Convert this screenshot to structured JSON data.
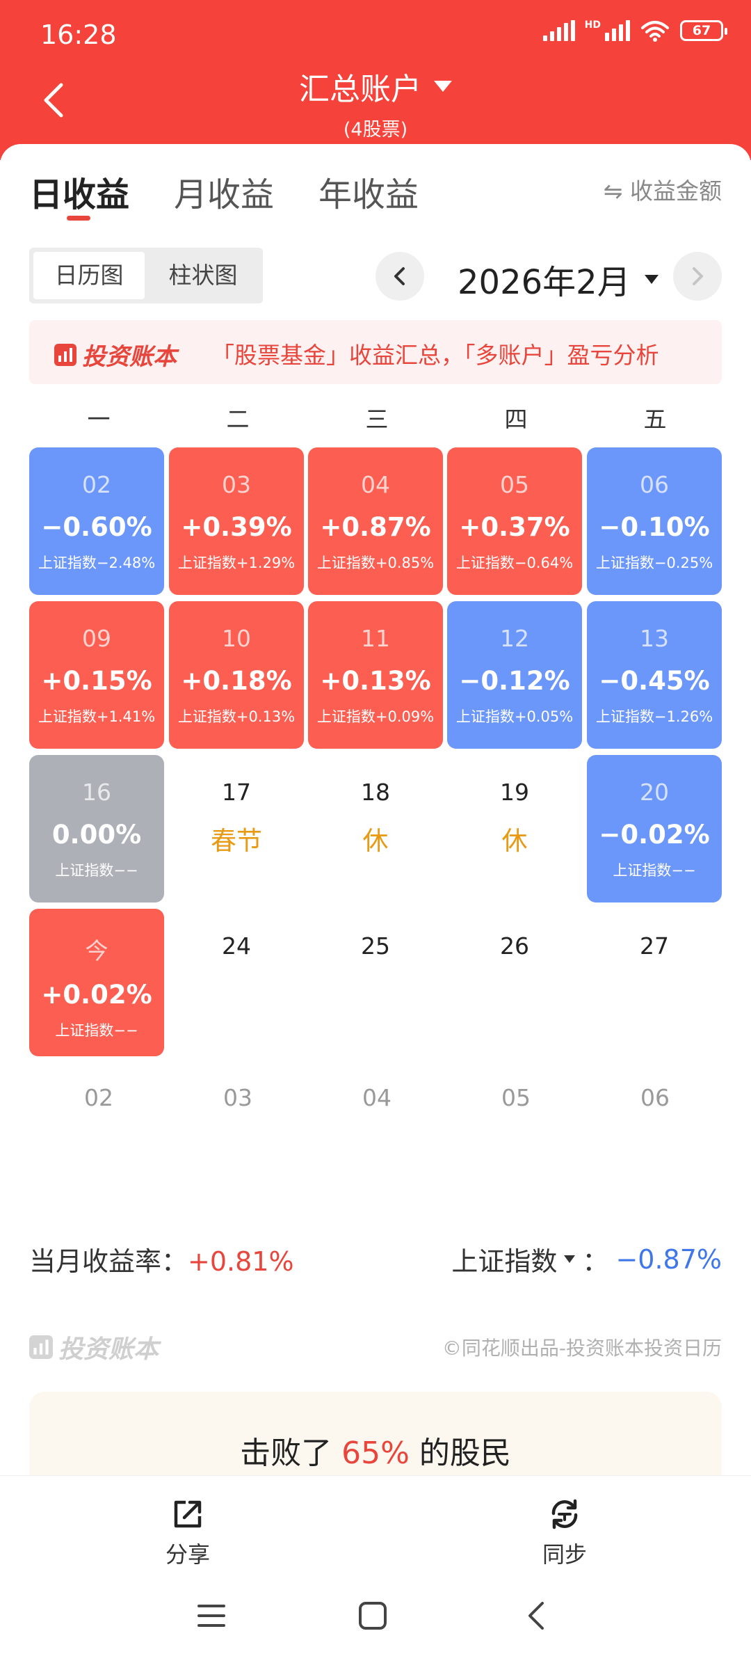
{
  "status": {
    "time": "16:28",
    "battery": "67",
    "hd_label": "HD"
  },
  "header": {
    "title": "汇总账户",
    "subtitle": "(4股票)"
  },
  "tabs": [
    {
      "label": "日收益",
      "active": true
    },
    {
      "label": "月收益",
      "active": false
    },
    {
      "label": "年收益",
      "active": false
    }
  ],
  "toggle": {
    "label": "⇋ 收益金额"
  },
  "view_switch": {
    "calendar": "日历图",
    "bar": "柱状图"
  },
  "month": {
    "label": "2026年2月"
  },
  "banner": {
    "logo": "投资账本",
    "text": "「股票基金」收益汇总，「多账户」盈亏分析"
  },
  "weekdays": [
    "一",
    "二",
    "三",
    "四",
    "五"
  ],
  "calendar": {
    "traded": [
      {
        "day": "02",
        "pct": "−0.60%",
        "idx": "上证指数−2.48%",
        "tone": "blue"
      },
      {
        "day": "03",
        "pct": "+0.39%",
        "idx": "上证指数+1.29%",
        "tone": "red"
      },
      {
        "day": "04",
        "pct": "+0.87%",
        "idx": "上证指数+0.85%",
        "tone": "red"
      },
      {
        "day": "05",
        "pct": "+0.37%",
        "idx": "上证指数−0.64%",
        "tone": "red"
      },
      {
        "day": "06",
        "pct": "−0.10%",
        "idx": "上证指数−0.25%",
        "tone": "blue"
      },
      {
        "day": "09",
        "pct": "+0.15%",
        "idx": "上证指数+1.41%",
        "tone": "red"
      },
      {
        "day": "10",
        "pct": "+0.18%",
        "idx": "上证指数+0.13%",
        "tone": "red"
      },
      {
        "day": "11",
        "pct": "+0.13%",
        "idx": "上证指数+0.09%",
        "tone": "red"
      },
      {
        "day": "12",
        "pct": "−0.12%",
        "idx": "上证指数+0.05%",
        "tone": "blue"
      },
      {
        "day": "13",
        "pct": "−0.45%",
        "idx": "上证指数−1.26%",
        "tone": "blue"
      },
      {
        "day": "16",
        "pct": "0.00%",
        "idx": "上证指数−−",
        "tone": "gray"
      },
      {
        "day": "20",
        "pct": "−0.02%",
        "idx": "上证指数−−",
        "tone": "blue"
      },
      {
        "day": "今",
        "pct": "+0.02%",
        "idx": "上证指数−−",
        "tone": "red"
      }
    ],
    "holidays": [
      {
        "day": "17",
        "note": "春节"
      },
      {
        "day": "18",
        "note": "休"
      },
      {
        "day": "19",
        "note": "休"
      }
    ],
    "upcoming": [
      "24",
      "25",
      "26",
      "27"
    ],
    "next_month": [
      "02",
      "03",
      "04",
      "05",
      "06"
    ]
  },
  "summary": {
    "label": "当月收益率：",
    "value": "+0.81%",
    "index_label": "上证指数",
    "index_sep": "：",
    "index_value": "−0.87%"
  },
  "footer": {
    "logo": "投资账本",
    "credit": "©同花顺出品-投资账本投资日历"
  },
  "beat": {
    "prefix": "击败了 ",
    "pct": "65%",
    "suffix": " 的股民"
  },
  "actions": {
    "share": "分享",
    "sync": "同步"
  },
  "colors": {
    "brand_red": "#f5423a",
    "gain": "#fc5f52",
    "loss": "#6c97fa",
    "flat": "#aeb0b8",
    "holiday": "#e89a14"
  }
}
